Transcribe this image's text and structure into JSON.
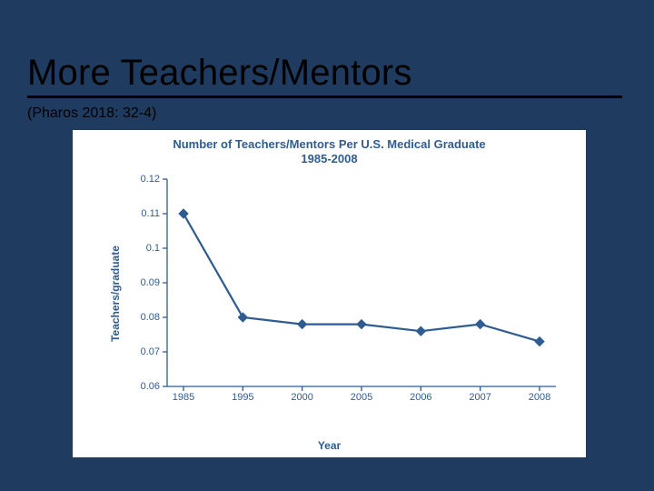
{
  "slide": {
    "background_color": "#1f3b60",
    "title": "More Teachers/Mentors",
    "subtitle": "(Pharos 2018: 32-4)",
    "title_underline_color": "#000000"
  },
  "chart": {
    "type": "line",
    "panel_background": "#ffffff",
    "title_line1": "Number of Teachers/Mentors Per U.S. Medical Graduate",
    "title_line2": "1985-2008",
    "ylabel": "Teachers/graduate",
    "xlabel": "Year",
    "x_categories": [
      "1985",
      "1995",
      "2000",
      "2005",
      "2006",
      "2007",
      "2008"
    ],
    "y_values": [
      0.11,
      0.08,
      0.078,
      0.078,
      0.076,
      0.078,
      0.073
    ],
    "ylim": [
      0.06,
      0.12
    ],
    "yticks": [
      0.06,
      0.07,
      0.08,
      0.09,
      0.1,
      0.11,
      0.12
    ],
    "ytick_labels": [
      "0.06",
      "0.07",
      "0.08",
      "0.09",
      "0.1",
      "0.11",
      "0.12"
    ],
    "line_color": "#2f5c90",
    "line_width": 2.2,
    "marker_shape": "diamond",
    "marker_size": 5,
    "marker_color": "#2f5c90",
    "axis_color": "#2f5c90",
    "text_color": "#2f5c90",
    "title_fontsize": 13,
    "label_fontsize": 12,
    "tick_fontsize": 11
  }
}
